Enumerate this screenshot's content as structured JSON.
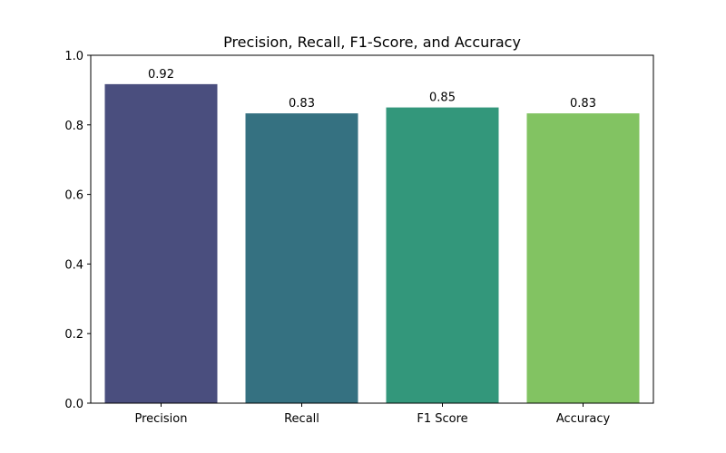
{
  "chart_data": {
    "type": "bar",
    "title": "Precision, Recall, F1-Score, and Accuracy",
    "xlabel": "",
    "ylabel": "",
    "categories": [
      "Precision",
      "Recall",
      "F1 Score",
      "Accuracy"
    ],
    "values": [
      0.917,
      0.833,
      0.85,
      0.833
    ],
    "value_labels": [
      "0.92",
      "0.83",
      "0.85",
      "0.83"
    ],
    "colors": [
      "#482878",
      "#31688e",
      "#35a77e",
      "#7ec35f"
    ],
    "bar_colors": [
      "#4a4e7e",
      "#357181",
      "#33977b",
      "#82c362"
    ],
    "ylim": [
      0,
      1.0
    ],
    "yticks": [
      0.0,
      0.2,
      0.4,
      0.6,
      0.8,
      1.0
    ],
    "ytick_labels": [
      "0.0",
      "0.2",
      "0.4",
      "0.6",
      "0.8",
      "1.0"
    ],
    "grid": false,
    "legend": "none"
  }
}
